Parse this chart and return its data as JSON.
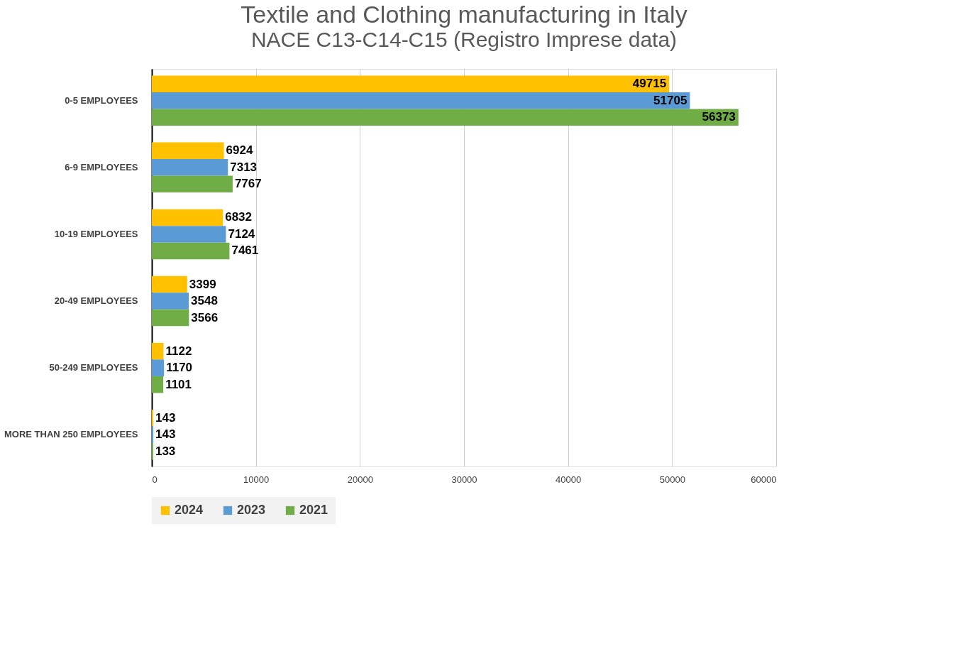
{
  "chart_data": {
    "type": "bar",
    "orientation": "horizontal",
    "title": "Textile and Clothing manufacturing in Italy",
    "subtitle": "NACE C13-C14-C15 (Registro Imprese data)",
    "categories": [
      "0-5 EMPLOYEES",
      "6-9 EMPLOYEES",
      "10-19 EMPLOYEES",
      "20-49 EMPLOYEES",
      "50-249 EMPLOYEES",
      "MORE THAN 250 EMPLOYEES"
    ],
    "series": [
      {
        "name": "2024",
        "color": "#ffc000",
        "values": [
          49715,
          6924,
          6832,
          3399,
          1122,
          143
        ]
      },
      {
        "name": "2023",
        "color": "#5b9bd5",
        "values": [
          51705,
          7313,
          7124,
          3548,
          1170,
          143
        ]
      },
      {
        "name": "2021",
        "color": "#70ad47",
        "values": [
          56373,
          7767,
          7461,
          3566,
          1101,
          133
        ]
      }
    ],
    "xlim": [
      0,
      60000
    ],
    "xticks": [
      0,
      10000,
      20000,
      30000,
      40000,
      50000,
      60000
    ],
    "grid": "x",
    "legend": "bottom",
    "data_labels": true
  }
}
